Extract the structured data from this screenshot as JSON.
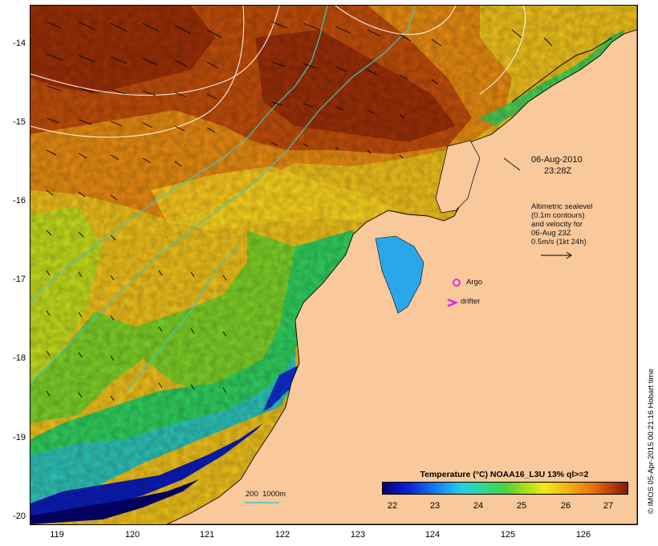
{
  "map": {
    "y_ticks": [
      "-14",
      "-15",
      "-16",
      "-17",
      "-18",
      "-19",
      "-20"
    ],
    "x_ticks": [
      "119",
      "120",
      "121",
      "122",
      "123",
      "124",
      "125",
      "126"
    ],
    "date_label": "06-Aug-2010",
    "time_label": "23:28Z",
    "info_lines": [
      "Altimetric sealevel",
      "(0.1m contours)",
      "and velocity for",
      "06-Aug 23Z",
      "0.5m/s (1kt 24h)"
    ],
    "argo_label": "Argo",
    "drifter_label": "drifter",
    "depth_scale_label": "200  1000m",
    "colorbar_title": "Temperature (°C) NOAA16_L3U 13% ql>=2",
    "colorbar_ticks": [
      "22",
      "23",
      "24",
      "25",
      "26",
      "27"
    ],
    "copyright": "© IMOS 05-Apr-2015 00:21:16 Hobart time",
    "colors": {
      "land": "#f9c89b",
      "cold": "#04006e",
      "warm": "#7a1c05",
      "isobath": "#3fc6c6",
      "contour": "#ffffff",
      "argo_marker": "#e81ee8"
    },
    "icons": [
      "argo-float-icon",
      "drifter-icon",
      "velocity-vector-icon"
    ]
  }
}
